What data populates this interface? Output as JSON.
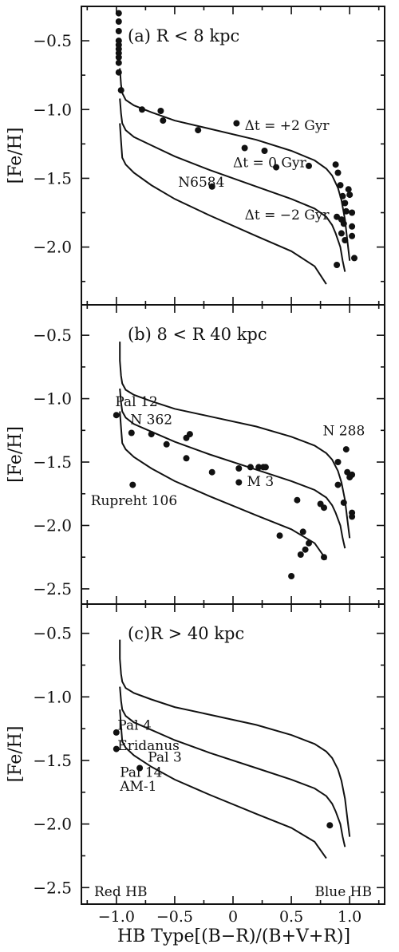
{
  "chart_data": {
    "type": "scatter",
    "x_axis_label": "HB Type[(B−R)/(B+V+R)]",
    "x_ticks": [
      "−1.0",
      "−0.5",
      "0",
      "0.5",
      "1.0"
    ],
    "x_range": [
      -1.3,
      1.3
    ],
    "y_axis_label": "[Fe/H]",
    "red_hb_label": "Red HB",
    "blue_hb_label": "Blue HB",
    "panels": [
      {
        "title": "(a)  R < 8 kpc",
        "y_range": [
          -2.42,
          -0.25
        ],
        "y_ticks": [
          "−0.5",
          "−1.0",
          "−1.5",
          "−2.0"
        ],
        "y_tick_values": [
          -0.5,
          -1.0,
          -1.5,
          -2.0
        ],
        "isochrone_labels": [
          {
            "text": "Δt = +2 Gyr",
            "x": 0.1,
            "y": -1.15
          },
          {
            "text": "Δt = 0 Gyr",
            "x": 0.0,
            "y": -1.42
          },
          {
            "text": "Δt = −2 Gyr",
            "x": 0.1,
            "y": -1.8
          }
        ],
        "point_labels": [
          {
            "text": "N6584",
            "x": -0.47,
            "y": -1.56
          }
        ],
        "points": [
          [
            -0.98,
            -0.3
          ],
          [
            -0.98,
            -0.36
          ],
          [
            -0.98,
            -0.43
          ],
          [
            -0.98,
            -0.5
          ],
          [
            -0.98,
            -0.53
          ],
          [
            -0.98,
            -0.56
          ],
          [
            -0.98,
            -0.59
          ],
          [
            -0.98,
            -0.62
          ],
          [
            -0.98,
            -0.66
          ],
          [
            -0.98,
            -0.73
          ],
          [
            -0.96,
            -0.86
          ],
          [
            -0.78,
            -1.0
          ],
          [
            -0.62,
            -1.01
          ],
          [
            -0.6,
            -1.08
          ],
          [
            -0.3,
            -1.15
          ],
          [
            -0.18,
            -1.56
          ],
          [
            0.03,
            -1.1
          ],
          [
            0.1,
            -1.28
          ],
          [
            0.27,
            -1.3
          ],
          [
            0.37,
            -1.42
          ],
          [
            0.65,
            -1.41
          ],
          [
            0.88,
            -1.4
          ],
          [
            0.9,
            -1.46
          ],
          [
            0.92,
            -1.55
          ],
          [
            0.94,
            -1.63
          ],
          [
            0.96,
            -1.68
          ],
          [
            0.99,
            -1.58
          ],
          [
            0.89,
            -1.78
          ],
          [
            0.93,
            -1.8
          ],
          [
            0.95,
            -1.83
          ],
          [
            0.97,
            -1.74
          ],
          [
            0.93,
            -1.9
          ],
          [
            0.96,
            -1.95
          ],
          [
            1.0,
            -1.62
          ],
          [
            1.02,
            -1.75
          ],
          [
            1.02,
            -1.85
          ],
          [
            1.02,
            -1.92
          ],
          [
            0.89,
            -2.13
          ],
          [
            1.04,
            -2.08
          ]
        ],
        "curves": [
          {
            "name": "Δt = +2 Gyr",
            "x": [
              -0.97,
              -0.96,
              -0.95,
              -0.92,
              -0.85,
              -0.7,
              -0.5,
              -0.2,
              0.2,
              0.5,
              0.7,
              0.8,
              0.85,
              0.9,
              0.93,
              0.96,
              0.98,
              1.0
            ],
            "y": [
              -0.7,
              -0.82,
              -0.88,
              -0.93,
              -0.97,
              -1.02,
              -1.08,
              -1.14,
              -1.22,
              -1.3,
              -1.37,
              -1.43,
              -1.48,
              -1.57,
              -1.66,
              -1.8,
              -1.95,
              -2.1
            ]
          },
          {
            "name": "Δt = 0 Gyr",
            "x": [
              -0.97,
              -0.96,
              -0.95,
              -0.92,
              -0.85,
              -0.7,
              -0.5,
              -0.2,
              0.2,
              0.5,
              0.7,
              0.8,
              0.85,
              0.88,
              0.92,
              0.94,
              0.96
            ],
            "y": [
              -0.92,
              -1.03,
              -1.1,
              -1.15,
              -1.2,
              -1.26,
              -1.34,
              -1.44,
              -1.56,
              -1.65,
              -1.72,
              -1.78,
              -1.84,
              -1.9,
              -2.0,
              -2.1,
              -2.18
            ]
          },
          {
            "name": "Δt = −2 Gyr",
            "x": [
              -0.97,
              -0.96,
              -0.95,
              -0.92,
              -0.85,
              -0.7,
              -0.5,
              -0.2,
              0.2,
              0.5,
              0.7,
              0.8
            ],
            "y": [
              -1.1,
              -1.23,
              -1.35,
              -1.4,
              -1.46,
              -1.55,
              -1.65,
              -1.77,
              -1.92,
              -2.03,
              -2.14,
              -2.27
            ]
          }
        ]
      },
      {
        "title": "(b)  8 < R  40 kpc",
        "y_range": [
          -2.62,
          -0.26
        ],
        "y_ticks": [
          "−0.5",
          "−1.0",
          "−1.5",
          "−2.0",
          "−2.5"
        ],
        "y_tick_values": [
          -0.5,
          -1.0,
          -1.5,
          -2.0,
          -2.5
        ],
        "point_labels": [
          {
            "text": "Pal 12",
            "x": -1.01,
            "y": -1.06
          },
          {
            "text": "N 362",
            "x": -0.88,
            "y": -1.2
          },
          {
            "text": "N 288",
            "x": 0.77,
            "y": -1.29
          },
          {
            "text": "M 3",
            "x": 0.12,
            "y": -1.69
          },
          {
            "text": "Rupreht 106",
            "x": -1.22,
            "y": -1.84
          }
        ],
        "points": [
          [
            -1.0,
            -1.13
          ],
          [
            -0.87,
            -1.27
          ],
          [
            -0.7,
            -1.28
          ],
          [
            -0.57,
            -1.36
          ],
          [
            -0.4,
            -1.31
          ],
          [
            -0.37,
            -1.28
          ],
          [
            -0.4,
            -1.47
          ],
          [
            -0.18,
            -1.58
          ],
          [
            -0.86,
            -1.68
          ],
          [
            0.05,
            -1.55
          ],
          [
            0.05,
            -1.66
          ],
          [
            0.15,
            -1.54
          ],
          [
            0.22,
            -1.54
          ],
          [
            0.26,
            -1.54
          ],
          [
            0.28,
            -1.54
          ],
          [
            0.55,
            -1.8
          ],
          [
            0.4,
            -2.08
          ],
          [
            0.6,
            -2.05
          ],
          [
            0.65,
            -2.14
          ],
          [
            0.62,
            -2.19
          ],
          [
            0.58,
            -2.23
          ],
          [
            0.5,
            -2.4
          ],
          [
            0.75,
            -1.83
          ],
          [
            0.78,
            -1.86
          ],
          [
            0.78,
            -2.25
          ],
          [
            0.9,
            -1.5
          ],
          [
            0.9,
            -1.68
          ],
          [
            0.95,
            -1.82
          ],
          [
            0.97,
            -1.4
          ],
          [
            0.98,
            -1.58
          ],
          [
            1.0,
            -1.62
          ],
          [
            1.02,
            -1.6
          ],
          [
            1.02,
            -1.9
          ],
          [
            1.02,
            -1.93
          ]
        ],
        "curves": [
          {
            "name": "Δt = +2 Gyr",
            "x": [
              -0.97,
              -0.97,
              -0.96,
              -0.95,
              -0.92,
              -0.85,
              -0.7,
              -0.5,
              -0.2,
              0.2,
              0.5,
              0.7,
              0.8,
              0.85,
              0.9,
              0.93,
              0.96,
              0.98,
              1.0
            ],
            "y": [
              -0.55,
              -0.7,
              -0.82,
              -0.88,
              -0.93,
              -0.97,
              -1.02,
              -1.08,
              -1.14,
              -1.22,
              -1.3,
              -1.37,
              -1.43,
              -1.48,
              -1.57,
              -1.66,
              -1.8,
              -1.95,
              -2.1
            ]
          },
          {
            "name": "Δt = 0 Gyr",
            "x": [
              -0.97,
              -0.96,
              -0.95,
              -0.92,
              -0.85,
              -0.7,
              -0.5,
              -0.2,
              0.2,
              0.5,
              0.7,
              0.8,
              0.85,
              0.88,
              0.92,
              0.94,
              0.96
            ],
            "y": [
              -0.92,
              -1.03,
              -1.1,
              -1.15,
              -1.2,
              -1.26,
              -1.34,
              -1.44,
              -1.56,
              -1.65,
              -1.72,
              -1.78,
              -1.84,
              -1.9,
              -2.0,
              -2.1,
              -2.18
            ]
          },
          {
            "name": "Δt = −2 Gyr",
            "x": [
              -0.97,
              -0.96,
              -0.95,
              -0.92,
              -0.85,
              -0.7,
              -0.5,
              -0.2,
              0.2,
              0.5,
              0.7,
              0.8
            ],
            "y": [
              -1.1,
              -1.23,
              -1.35,
              -1.4,
              -1.46,
              -1.55,
              -1.65,
              -1.77,
              -1.92,
              -2.03,
              -2.14,
              -2.27
            ]
          }
        ]
      },
      {
        "title": "(c)R > 40 kpc",
        "y_range": [
          -2.63,
          -0.27
        ],
        "y_ticks": [
          "−0.5",
          "−1.0",
          "−1.5",
          "−2.0",
          "−2.5"
        ],
        "y_tick_values": [
          -0.5,
          -1.0,
          -1.5,
          -2.0,
          -2.5
        ],
        "point_labels": [
          {
            "text": "Pal 4",
            "x": -0.99,
            "y": -1.26
          },
          {
            "text": "Eridanus",
            "x": -0.99,
            "y": -1.42
          },
          {
            "text": "Pal 3",
            "x": -0.73,
            "y": -1.51
          },
          {
            "text": "Pal 14",
            "x": -0.97,
            "y": -1.63
          },
          {
            "text": "AM-1",
            "x": -0.97,
            "y": -1.74
          }
        ],
        "points": [
          [
            -1.0,
            -1.28
          ],
          [
            -1.0,
            -1.41
          ],
          [
            -0.8,
            -1.56
          ],
          [
            0.83,
            -2.01
          ]
        ],
        "curves": [
          {
            "name": "Δt = +2 Gyr",
            "x": [
              -0.97,
              -0.97,
              -0.96,
              -0.95,
              -0.92,
              -0.85,
              -0.7,
              -0.5,
              -0.2,
              0.2,
              0.5,
              0.7,
              0.8,
              0.85,
              0.9,
              0.93,
              0.96,
              0.98,
              1.0
            ],
            "y": [
              -0.55,
              -0.7,
              -0.82,
              -0.88,
              -0.93,
              -0.97,
              -1.02,
              -1.08,
              -1.14,
              -1.22,
              -1.3,
              -1.37,
              -1.43,
              -1.48,
              -1.57,
              -1.66,
              -1.8,
              -1.95,
              -2.1
            ]
          },
          {
            "name": "Δt = 0 Gyr",
            "x": [
              -0.97,
              -0.96,
              -0.95,
              -0.92,
              -0.85,
              -0.7,
              -0.5,
              -0.2,
              0.2,
              0.5,
              0.7,
              0.8,
              0.85,
              0.88,
              0.92,
              0.94,
              0.96
            ],
            "y": [
              -0.92,
              -1.03,
              -1.1,
              -1.15,
              -1.2,
              -1.26,
              -1.34,
              -1.44,
              -1.56,
              -1.65,
              -1.72,
              -1.78,
              -1.84,
              -1.9,
              -2.0,
              -2.1,
              -2.18
            ]
          },
          {
            "name": "Δt = −2 Gyr",
            "x": [
              -0.97,
              -0.96,
              -0.95,
              -0.92,
              -0.85,
              -0.7,
              -0.5,
              -0.2,
              0.2,
              0.5,
              0.7,
              0.8
            ],
            "y": [
              -1.1,
              -1.23,
              -1.35,
              -1.4,
              -1.46,
              -1.55,
              -1.65,
              -1.77,
              -1.92,
              -2.03,
              -2.14,
              -2.27
            ]
          }
        ]
      }
    ]
  }
}
